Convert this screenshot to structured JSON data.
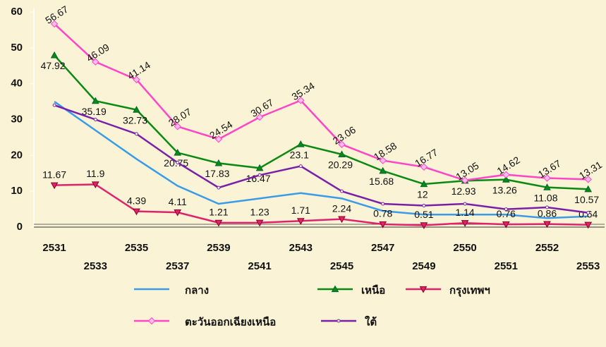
{
  "chart_data": {
    "type": "line",
    "categories": [
      "2531",
      "2533",
      "2535",
      "2537",
      "2539",
      "2541",
      "2543",
      "2545",
      "2547",
      "2549",
      "2550",
      "2551",
      "2552",
      "2553"
    ],
    "ylim": [
      0,
      60
    ],
    "yticks": [
      0,
      10,
      20,
      30,
      40,
      50,
      60
    ],
    "series": [
      {
        "name": "กลาง",
        "color": "#3a9be8",
        "marker": "none",
        "show_values": false,
        "values": [
          35,
          27,
          19,
          11.5,
          6.5,
          8,
          9.5,
          8,
          4.5,
          3.5,
          3.5,
          3.5,
          2.5,
          3
        ]
      },
      {
        "name": "เหนือ",
        "color": "#0a8a12",
        "marker": "triangle",
        "show_values": true,
        "values": [
          47.92,
          35.19,
          32.73,
          20.75,
          17.83,
          16.47,
          23.1,
          20.29,
          15.68,
          12,
          12.93,
          13.26,
          11.08,
          10.57
        ]
      },
      {
        "name": "กรุงเทพฯ",
        "color": "#e0226c",
        "marker": "triangle-down",
        "show_values": true,
        "values": [
          11.67,
          11.9,
          4.39,
          4.11,
          1.21,
          1.23,
          1.71,
          2.24,
          0.78,
          0.51,
          1.14,
          0.76,
          0.86,
          0.64
        ]
      },
      {
        "name": "ตะวันออกเฉียงเหนือ",
        "color": "#ff45c8",
        "marker": "diamond",
        "show_values": true,
        "values": [
          56.67,
          46.09,
          41.14,
          28.07,
          24.54,
          30.67,
          35.34,
          23.06,
          18.58,
          16.77,
          13.05,
          14.62,
          13.67,
          13.31
        ]
      },
      {
        "name": "ใต้",
        "color": "#7a20a8",
        "marker": "circle",
        "show_values": false,
        "values": [
          34,
          30,
          26,
          18,
          11,
          14.5,
          17,
          10,
          6.5,
          6,
          6.5,
          5,
          5.5,
          4
        ]
      }
    ]
  }
}
